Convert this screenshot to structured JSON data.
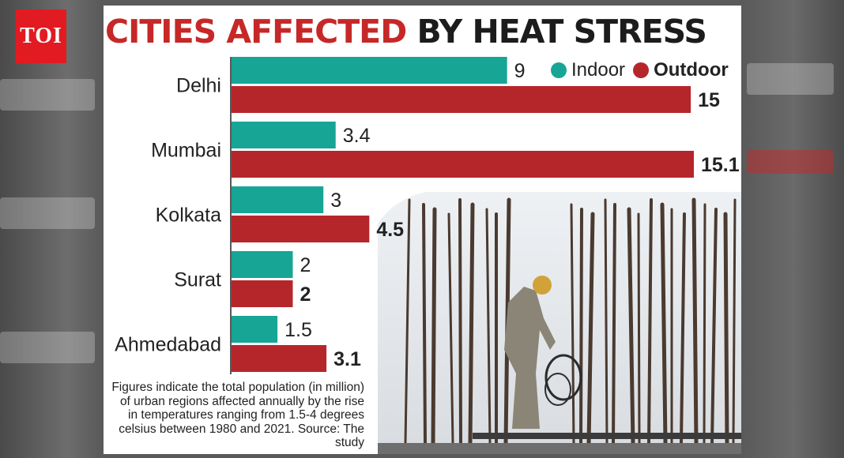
{
  "logo": "TOI",
  "title": {
    "part1": "CITIES AFFECTED",
    "part2": "BY HEAT STRESS"
  },
  "legend": {
    "indoor": "Indoor",
    "outdoor": "Outdoor"
  },
  "colors": {
    "indoor": "#17a596",
    "outdoor": "#b5262b",
    "title_red": "#c62828",
    "logo_red": "#e21b22"
  },
  "note": "Figures indicate the total population (in million) of urban regions affected annually by the rise in temperatures ranging from 1.5-4 degrees celsius between 1980 and 2021. Source: The study",
  "chart_data": {
    "type": "bar",
    "orientation": "horizontal",
    "title": "CITIES AFFECTED BY HEAT STRESS",
    "categories": [
      "Delhi",
      "Mumbai",
      "Kolkata",
      "Surat",
      "Ahmedabad"
    ],
    "series": [
      {
        "name": "Indoor",
        "values": [
          9,
          3.4,
          3,
          2,
          1.5
        ],
        "labels": [
          "9",
          "3.4",
          "3",
          "2",
          "1.5"
        ]
      },
      {
        "name": "Outdoor",
        "values": [
          15,
          15.1,
          4.5,
          2,
          3.1
        ],
        "labels": [
          "15",
          "15.1",
          "4.5",
          "2",
          "3.1"
        ]
      }
    ],
    "xlim": [
      0,
      15.1
    ],
    "legend_position": "top-right"
  }
}
